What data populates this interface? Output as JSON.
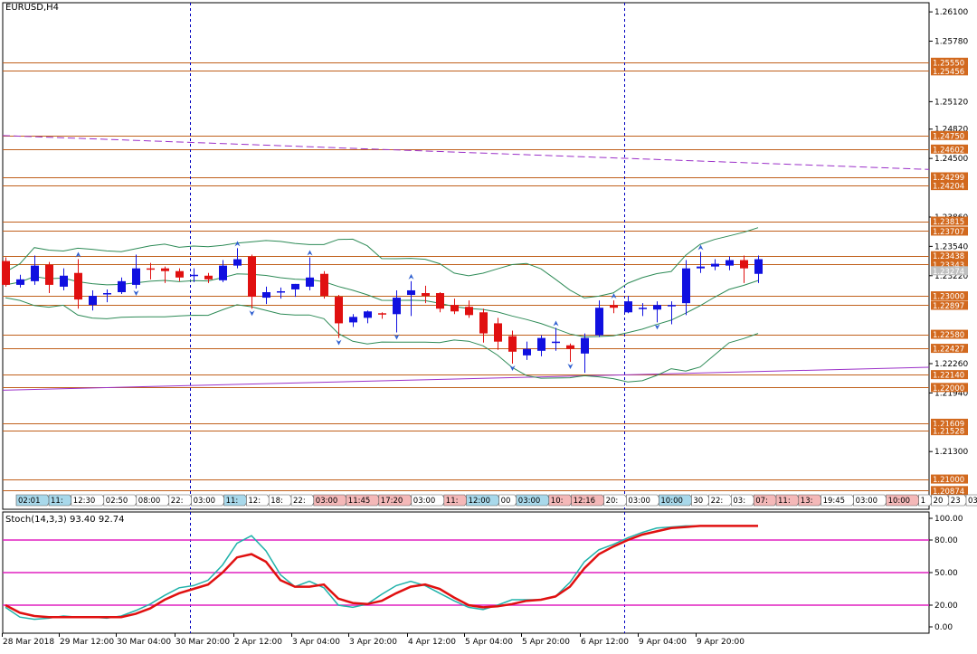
{
  "chart_title": "EURUSD,H4",
  "stoch_title": "Stoch(14,3,3) 93.40 92.74",
  "colors": {
    "bull": "#1010e0",
    "bear": "#e01010",
    "level_line": "#c0601c",
    "level_label_bg": "#d2691e",
    "bands": "#2e8b57",
    "trendline": "#9b30c8",
    "stoch_main": "#20b2aa",
    "stoch_signal": "#e01010",
    "stoch_levels": "#e020c0",
    "separator": "#0000c0"
  },
  "price_axis": {
    "ticks": [
      "1.26100",
      "1.25780",
      "1.25120",
      "1.24820",
      "1.24500",
      "1.23860",
      "1.23540",
      "1.23220",
      "1.22260",
      "1.21940",
      "1.21300"
    ],
    "level_labels": [
      "1.25550",
      "1.25456",
      "1.24750",
      "1.24602",
      "1.24299",
      "1.24204",
      "1.23815",
      "1.23707",
      "1.23438",
      "1.23343",
      "1.23274",
      "1.23000",
      "1.22897",
      "1.22580",
      "1.22427",
      "1.22140",
      "1.22000",
      "1.21609",
      "1.21528",
      "1.21000",
      "1.20874"
    ]
  },
  "stoch_axis": {
    "ticks": [
      "100.00",
      "80.00",
      "50.00",
      "20.00",
      "0.00"
    ]
  },
  "time_axis": [
    "28 Mar 2018",
    "29 Mar 12:00",
    "30 Mar 04:00",
    "30 Mar 20:00",
    "2 Apr 12:00",
    "3 Apr 04:00",
    "3 Apr 20:00",
    "4 Apr 12:00",
    "5 Apr 04:00",
    "5 Apr 20:00",
    "6 Apr 12:00",
    "9 Apr 04:00",
    "9 Apr 20:00"
  ],
  "session_boxes": [
    {
      "label": "02:01",
      "color": "#a8d8ea"
    },
    {
      "label": "11:",
      "color": "#a8d8ea"
    },
    {
      "label": "12:30",
      "color": "#ffffff"
    },
    {
      "label": "02:50",
      "color": "#ffffff"
    },
    {
      "label": "08:00",
      "color": "#ffffff"
    },
    {
      "label": "22:",
      "color": "#ffffff"
    },
    {
      "label": "03:00",
      "color": "#ffffff"
    },
    {
      "label": "11:",
      "color": "#a8d8ea"
    },
    {
      "label": "12:",
      "color": "#ffffff"
    },
    {
      "label": "18:",
      "color": "#ffffff"
    },
    {
      "label": "22:",
      "color": "#ffffff"
    },
    {
      "label": "03:00",
      "color": "#f4b8b8"
    },
    {
      "label": "11:45",
      "color": "#f4b8b8"
    },
    {
      "label": "17:20",
      "color": "#f4b8b8"
    },
    {
      "label": "03:00",
      "color": "#ffffff"
    },
    {
      "label": "11:",
      "color": "#f4b8b8"
    },
    {
      "label": "12:00",
      "color": "#a8d8ea"
    },
    {
      "label": "00",
      "color": "#ffffff"
    },
    {
      "label": "03:00",
      "color": "#a8d8ea"
    },
    {
      "label": "10:",
      "color": "#f4b8b8"
    },
    {
      "label": "12:16",
      "color": "#f4b8b8"
    },
    {
      "label": "20:",
      "color": "#ffffff"
    },
    {
      "label": "03:00",
      "color": "#ffffff"
    },
    {
      "label": "10:00",
      "color": "#a8d8ea"
    },
    {
      "label": "30",
      "color": "#ffffff"
    },
    {
      "label": "22:",
      "color": "#ffffff"
    },
    {
      "label": "03:",
      "color": "#ffffff"
    },
    {
      "label": "07:",
      "color": "#f4b8b8"
    },
    {
      "label": "11:",
      "color": "#f4b8b8"
    },
    {
      "label": "13:",
      "color": "#f4b8b8"
    },
    {
      "label": "19:45",
      "color": "#ffffff"
    },
    {
      "label": "03:00",
      "color": "#ffffff"
    },
    {
      "label": "10:00",
      "color": "#f4b8b8"
    },
    {
      "label": "1",
      "color": "#ffffff"
    },
    {
      "label": "20",
      "color": "#ffffff"
    },
    {
      "label": "23",
      "color": "#ffffff"
    },
    {
      "label": "03:00",
      "color": "#ffffff"
    },
    {
      "label": "1",
      "color": "#ffffff"
    },
    {
      "label": "14:00",
      "color": "#ffffff"
    },
    {
      "label": "21:00",
      "color": "#ffffff"
    },
    {
      "label": "0",
      "color": "#ffffff"
    }
  ],
  "candles": [
    {
      "o": 1.2338,
      "h": 1.2342,
      "l": 1.231,
      "c": 1.2312
    },
    {
      "o": 1.2312,
      "h": 1.2323,
      "l": 1.2309,
      "c": 1.2318
    },
    {
      "o": 1.2316,
      "h": 1.2344,
      "l": 1.2312,
      "c": 1.2333
    },
    {
      "o": 1.2334,
      "h": 1.2337,
      "l": 1.2303,
      "c": 1.2312
    },
    {
      "o": 1.231,
      "h": 1.233,
      "l": 1.2306,
      "c": 1.2322
    },
    {
      "o": 1.2325,
      "h": 1.234,
      "l": 1.2286,
      "c": 1.2296
    },
    {
      "o": 1.229,
      "h": 1.2306,
      "l": 1.2284,
      "c": 1.23
    },
    {
      "o": 1.2302,
      "h": 1.2307,
      "l": 1.2293,
      "c": 1.2303
    },
    {
      "o": 1.2304,
      "h": 1.232,
      "l": 1.2302,
      "c": 1.2316
    },
    {
      "o": 1.2312,
      "h": 1.2345,
      "l": 1.2308,
      "c": 1.233
    },
    {
      "o": 1.233,
      "h": 1.2336,
      "l": 1.2318,
      "c": 1.2329
    },
    {
      "o": 1.233,
      "h": 1.2332,
      "l": 1.2314,
      "c": 1.2327
    },
    {
      "o": 1.2327,
      "h": 1.233,
      "l": 1.2316,
      "c": 1.232
    },
    {
      "o": 1.2323,
      "h": 1.233,
      "l": 1.2315,
      "c": 1.2323
    },
    {
      "o": 1.2322,
      "h": 1.2325,
      "l": 1.2314,
      "c": 1.2318
    },
    {
      "o": 1.2317,
      "h": 1.2339,
      "l": 1.2315,
      "c": 1.2333
    },
    {
      "o": 1.2333,
      "h": 1.2352,
      "l": 1.233,
      "c": 1.234
    },
    {
      "o": 1.2343,
      "h": 1.2345,
      "l": 1.2286,
      "c": 1.2299
    },
    {
      "o": 1.2298,
      "h": 1.231,
      "l": 1.2291,
      "c": 1.2304
    },
    {
      "o": 1.2304,
      "h": 1.2309,
      "l": 1.2297,
      "c": 1.2305
    },
    {
      "o": 1.2307,
      "h": 1.2313,
      "l": 1.2299,
      "c": 1.2313
    },
    {
      "o": 1.231,
      "h": 1.2342,
      "l": 1.2306,
      "c": 1.232
    },
    {
      "o": 1.2324,
      "h": 1.2327,
      "l": 1.2297,
      "c": 1.23
    },
    {
      "o": 1.2299,
      "h": 1.2301,
      "l": 1.2254,
      "c": 1.227
    },
    {
      "o": 1.2271,
      "h": 1.228,
      "l": 1.2266,
      "c": 1.2277
    },
    {
      "o": 1.2276,
      "h": 1.2284,
      "l": 1.227,
      "c": 1.2283
    },
    {
      "o": 1.2281,
      "h": 1.2282,
      "l": 1.2275,
      "c": 1.228
    },
    {
      "o": 1.228,
      "h": 1.2306,
      "l": 1.226,
      "c": 1.2298
    },
    {
      "o": 1.2301,
      "h": 1.2316,
      "l": 1.2278,
      "c": 1.2306
    },
    {
      "o": 1.2303,
      "h": 1.2311,
      "l": 1.2292,
      "c": 1.23
    },
    {
      "o": 1.2303,
      "h": 1.2304,
      "l": 1.2282,
      "c": 1.2286
    },
    {
      "o": 1.229,
      "h": 1.2297,
      "l": 1.228,
      "c": 1.2283
    },
    {
      "o": 1.2288,
      "h": 1.2295,
      "l": 1.2276,
      "c": 1.2279
    },
    {
      "o": 1.2282,
      "h": 1.2286,
      "l": 1.2249,
      "c": 1.2259
    },
    {
      "o": 1.227,
      "h": 1.2276,
      "l": 1.2241,
      "c": 1.225
    },
    {
      "o": 1.2256,
      "h": 1.2262,
      "l": 1.2226,
      "c": 1.2239
    },
    {
      "o": 1.2235,
      "h": 1.225,
      "l": 1.223,
      "c": 1.2242
    },
    {
      "o": 1.224,
      "h": 1.2257,
      "l": 1.2234,
      "c": 1.2254
    },
    {
      "o": 1.225,
      "h": 1.2265,
      "l": 1.224,
      "c": 1.225
    },
    {
      "o": 1.2246,
      "h": 1.2248,
      "l": 1.2228,
      "c": 1.2242
    },
    {
      "o": 1.2237,
      "h": 1.2259,
      "l": 1.2216,
      "c": 1.2254
    },
    {
      "o": 1.2257,
      "h": 1.2295,
      "l": 1.2255,
      "c": 1.2287
    },
    {
      "o": 1.229,
      "h": 1.2295,
      "l": 1.2281,
      "c": 1.2287
    },
    {
      "o": 1.2282,
      "h": 1.23,
      "l": 1.2281,
      "c": 1.2294
    },
    {
      "o": 1.2287,
      "h": 1.2292,
      "l": 1.2278,
      "c": 1.2287
    },
    {
      "o": 1.2285,
      "h": 1.2294,
      "l": 1.2271,
      "c": 1.229
    },
    {
      "o": 1.229,
      "h": 1.2294,
      "l": 1.2269,
      "c": 1.229
    },
    {
      "o": 1.2292,
      "h": 1.2339,
      "l": 1.2279,
      "c": 1.233
    },
    {
      "o": 1.233,
      "h": 1.2348,
      "l": 1.2325,
      "c": 1.2332
    },
    {
      "o": 1.2332,
      "h": 1.234,
      "l": 1.2328,
      "c": 1.2335
    },
    {
      "o": 1.2333,
      "h": 1.2343,
      "l": 1.2328,
      "c": 1.2339
    },
    {
      "o": 1.2339,
      "h": 1.2344,
      "l": 1.2314,
      "c": 1.233
    },
    {
      "o": 1.2324,
      "h": 1.2344,
      "l": 1.2314,
      "c": 1.234
    }
  ],
  "stoch_main": [
    18,
    9,
    7,
    8,
    10,
    9,
    9,
    8,
    10,
    15,
    21,
    29,
    36,
    38,
    43,
    57,
    77,
    84,
    70,
    48,
    37,
    42,
    36,
    20,
    18,
    21,
    30,
    38,
    42,
    38,
    31,
    24,
    18,
    16,
    20,
    25,
    25,
    25,
    28,
    41,
    60,
    71,
    76,
    82,
    87,
    91,
    92,
    93,
    93,
    93,
    93,
    93,
    93
  ],
  "stoch_signal": [
    20,
    13,
    10,
    9,
    9,
    9,
    9,
    9,
    9,
    12,
    17,
    25,
    31,
    35,
    39,
    50,
    64,
    67,
    60,
    43,
    37,
    37,
    39,
    26,
    22,
    21,
    24,
    31,
    37,
    39,
    35,
    27,
    20,
    18,
    19,
    21,
    24,
    25,
    28,
    37,
    54,
    67,
    74,
    80,
    85,
    88,
    91,
    92,
    93,
    93,
    93,
    93,
    93
  ],
  "price_min": 1.2067,
  "price_max": 1.262,
  "levels": [
    1.2555,
    1.25456,
    1.2475,
    1.24602,
    1.24299,
    1.24204,
    1.23815,
    1.23707,
    1.23438,
    1.23343,
    1.23,
    1.22897,
    1.2258,
    1.22427,
    1.2214,
    1.22,
    1.21609,
    1.21528,
    1.21,
    1.20874
  ],
  "current_price": 1.23274
}
